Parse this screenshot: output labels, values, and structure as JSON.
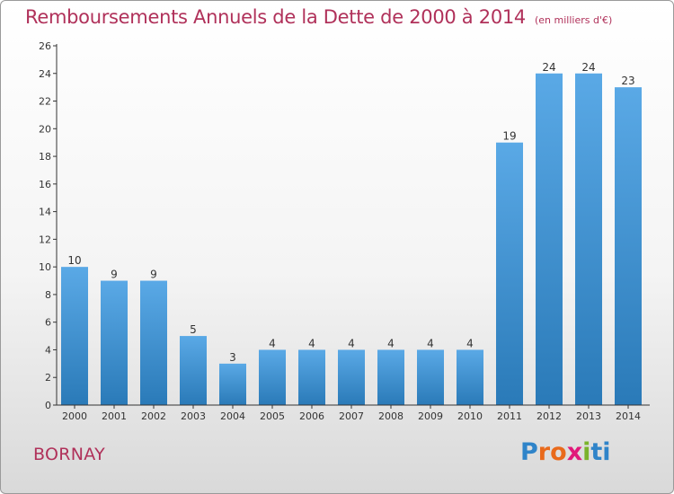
{
  "title": "Remboursements Annuels de la Dette de 2000 à 2014",
  "subtitle": "(en milliers d'€)",
  "place": "BORNAY",
  "logo": {
    "text": "Proxiti",
    "letters": [
      "P",
      "r",
      "o",
      "x",
      "i",
      "t",
      "i"
    ],
    "letter_colors": [
      "#2f84c9",
      "#e96a1c",
      "#e96a1c",
      "#e1187a",
      "#7ab32b",
      "#2f84c9",
      "#2f84c9"
    ]
  },
  "colors": {
    "title": "#b0315a",
    "bar_top": "#5aa9e6",
    "bar_bottom": "#2a7ab8",
    "axis": "#333333"
  },
  "chart_data": {
    "type": "bar",
    "title": "Remboursements Annuels de la Dette de 2000 à 2014",
    "subtitle": "(en milliers d'€)",
    "categories": [
      "2000",
      "2001",
      "2002",
      "2003",
      "2004",
      "2005",
      "2006",
      "2007",
      "2008",
      "2009",
      "2010",
      "2011",
      "2012",
      "2013",
      "2014"
    ],
    "values": [
      10,
      9,
      9,
      5,
      3,
      4,
      4,
      4,
      4,
      4,
      4,
      19,
      24,
      24,
      23
    ],
    "ylim": [
      0,
      26
    ],
    "yticks": [
      0,
      2,
      4,
      6,
      8,
      10,
      12,
      14,
      16,
      18,
      20,
      22,
      24,
      26
    ],
    "grid": false,
    "legend": "none"
  }
}
